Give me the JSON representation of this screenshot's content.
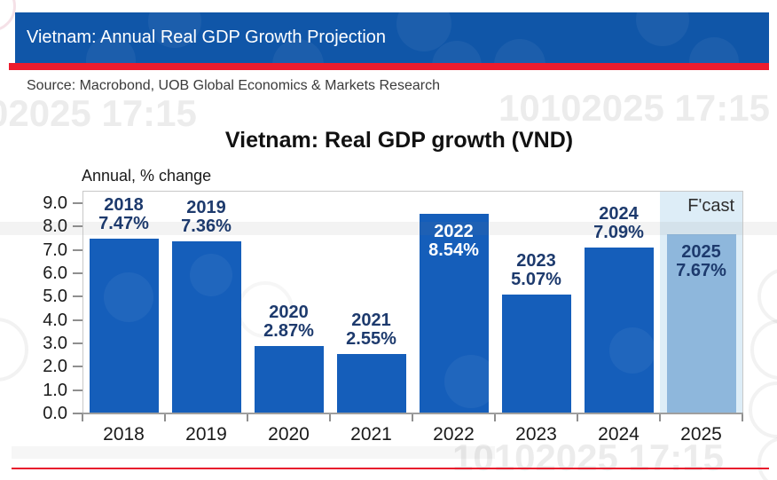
{
  "page": {
    "header": {
      "title": "Vietnam: Annual Real GDP Growth Projection",
      "bg_color": "#1056A8",
      "accent_color": "#EC1C2E"
    },
    "source_line": "Source: Macrobond, UOB Global Economics & Markets Research",
    "watermarks": {
      "top_left": "02025 17:15",
      "top_right": "10102025 17:15",
      "bottom": "10102025 17:15"
    }
  },
  "chart_data": {
    "type": "bar",
    "title": "Vietnam: Real GDP growth (VND)",
    "ylabel": "Annual, % change",
    "xlabel": "",
    "categories": [
      "2018",
      "2019",
      "2020",
      "2021",
      "2022",
      "2023",
      "2024",
      "2025"
    ],
    "values": [
      7.47,
      7.36,
      2.87,
      2.55,
      8.54,
      5.07,
      7.09,
      7.67
    ],
    "bar_value_labels": [
      "7.47%",
      "7.36%",
      "2.87%",
      "2.55%",
      "8.54%",
      "5.07%",
      "7.09%",
      "7.67%"
    ],
    "label_placement": [
      "above",
      "above",
      "above",
      "above",
      "inside-white",
      "above",
      "above",
      "inside-navy"
    ],
    "ylim": [
      0,
      9.5
    ],
    "yticks": [
      "0.0",
      "1.0",
      "2.0",
      "3.0",
      "4.0",
      "5.0",
      "6.0",
      "7.0",
      "8.0",
      "9.0"
    ],
    "grid": false,
    "legend": "none",
    "forecast": {
      "label": "F'cast",
      "category": "2025"
    },
    "colors": {
      "bar": "#155EBA",
      "forecast_bar": "#8EB7DC",
      "forecast_band": "#DDEDF7",
      "label_navy": "#1D3A6D",
      "label_inside_2022": "#FFFFFF"
    }
  }
}
